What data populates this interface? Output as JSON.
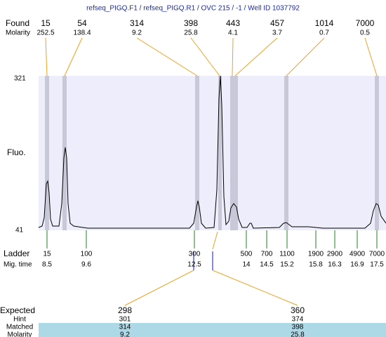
{
  "header": {
    "title": "refseq_PIGQ.F1 / refseq_PIGQ.R1 / OVC 215 / -1 / Well ID 1037792"
  },
  "found": {
    "label": "Found",
    "sub_label": "Molarity",
    "peaks": [
      {
        "size": 15,
        "molarity": 252.5
      },
      {
        "size": 54,
        "molarity": 138.4
      },
      {
        "size": 314,
        "molarity": 9.2
      },
      {
        "size": 398,
        "molarity": 25.8
      },
      {
        "size": 443,
        "molarity": 4.1
      },
      {
        "size": 457,
        "molarity": 3.7
      },
      {
        "size": 1014,
        "molarity": 0.7
      },
      {
        "size": 7000,
        "molarity": 0.5
      }
    ]
  },
  "plot": {
    "y_max": 321,
    "y_min": 41,
    "y_label": "Fluo."
  },
  "ladder": {
    "label": "Ladder",
    "sub_label": "Mig. time",
    "bands": [
      {
        "size": 15,
        "time": 8.5
      },
      {
        "size": 100,
        "time": 9.6
      },
      {
        "size": 300,
        "time": 12.5
      },
      {
        "size": 500,
        "time": 14
      },
      {
        "size": 700,
        "time": 14.5
      },
      {
        "size": 1100,
        "time": 15.2
      },
      {
        "size": 1900,
        "time": 15.8
      },
      {
        "size": 2900,
        "time": 16.3
      },
      {
        "size": 4900,
        "time": 16.9
      },
      {
        "size": 7000,
        "time": 17.5
      }
    ]
  },
  "expected": {
    "label": "Expected",
    "hint_label": "Hint",
    "matched_label": "Matched",
    "molarity_label": "Molarity",
    "columns": [
      {
        "expected": 298,
        "hint": 301,
        "matched": 314,
        "molarity": 9.2
      },
      {
        "expected": 360,
        "hint": 374,
        "matched": 398,
        "molarity": 25.8
      }
    ]
  }
}
